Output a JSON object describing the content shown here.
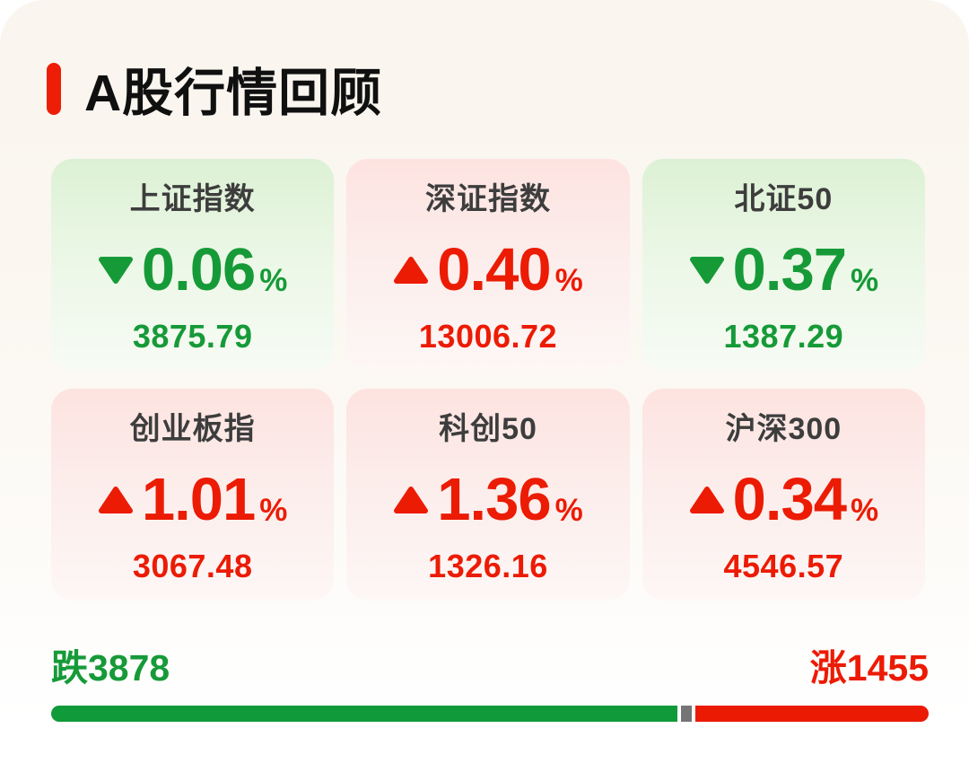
{
  "page": {
    "title": "A股行情回顾"
  },
  "labels": {
    "percent_suffix": "%"
  },
  "colors": {
    "up_red": "#ec1b04",
    "down_green": "#169a38",
    "accent_red": "#ee1d07",
    "bar_green": "#119a39",
    "bar_red": "#ea1b02",
    "bar_gray": "#757575"
  },
  "indices": [
    {
      "name": "上证指数",
      "direction": "down",
      "change_percent": "0.06",
      "value": "3875.79"
    },
    {
      "name": "深证指数",
      "direction": "up",
      "change_percent": "0.40",
      "value": "13006.72"
    },
    {
      "name": "北证50",
      "direction": "down",
      "change_percent": "0.37",
      "value": "1387.29"
    },
    {
      "name": "创业板指",
      "direction": "up",
      "change_percent": "1.01",
      "value": "3067.48"
    },
    {
      "name": "科创50",
      "direction": "up",
      "change_percent": "1.36",
      "value": "1326.16"
    },
    {
      "name": "沪深300",
      "direction": "up",
      "change_percent": "0.34",
      "value": "4546.57"
    }
  ],
  "breadth": {
    "decliners_label": "跌3878",
    "advancers_label": "涨1455"
  },
  "chart_data": {
    "type": "table",
    "title": "A股行情回顾",
    "indices": [
      {
        "name": "上证指数",
        "change_percent": -0.06,
        "value": 3875.79
      },
      {
        "name": "深证指数",
        "change_percent": 0.4,
        "value": 13006.72
      },
      {
        "name": "北证50",
        "change_percent": -0.37,
        "value": 1387.29
      },
      {
        "name": "创业板指",
        "change_percent": 1.01,
        "value": 3067.48
      },
      {
        "name": "科创50",
        "change_percent": 1.36,
        "value": 1326.16
      },
      {
        "name": "沪深300",
        "change_percent": 0.34,
        "value": 4546.57
      }
    ],
    "market_breadth": {
      "decliners": 3878,
      "advancers": 1455,
      "bar_fractions": {
        "down": 0.714,
        "unchanged": 0.012,
        "up": 0.264
      }
    }
  }
}
